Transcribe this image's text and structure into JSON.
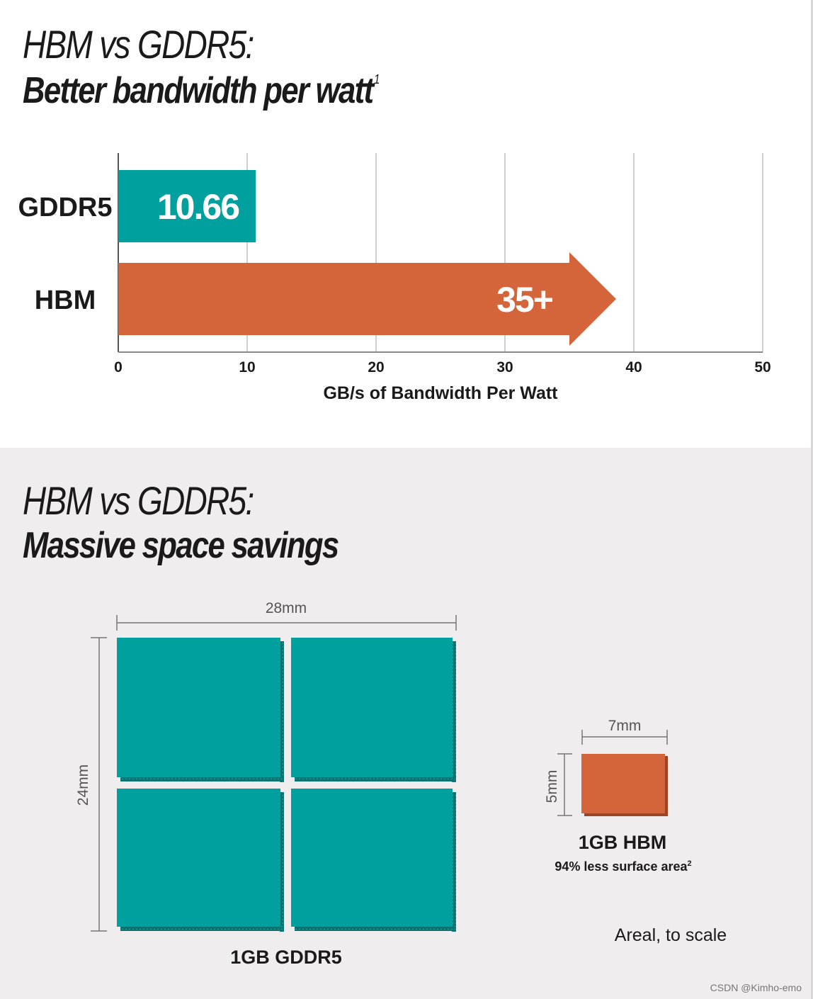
{
  "section1": {
    "heading_light": "HBM vs GDDR5:",
    "heading_bold": "Better bandwidth per watt",
    "heading_footnote": "1"
  },
  "section2": {
    "heading_light": "HBM vs GDDR5:",
    "heading_bold": "Massive space savings",
    "gddr5_width_label": "28mm",
    "gddr5_height_label": "24mm",
    "gddr5_caption": "1GB GDDR5",
    "hbm_width_label": "7mm",
    "hbm_height_label": "5mm",
    "hbm_caption": "1GB HBM",
    "hbm_subcaption": "94% less surface area",
    "hbm_subcaption_footnote": "2",
    "scale_note": "Areal, to scale"
  },
  "chart_data": {
    "type": "bar",
    "orientation": "horizontal",
    "categories": [
      "GDDR5",
      "HBM"
    ],
    "values": [
      10.66,
      35
    ],
    "value_labels": [
      "10.66",
      "35+"
    ],
    "xlabel": "GB/s of Bandwidth Per Watt",
    "ylabel": "",
    "xlim": [
      0,
      50
    ],
    "xticks": [
      0,
      10,
      20,
      30,
      40,
      50
    ],
    "grid": true,
    "colors": {
      "GDDR5": "#00a09f",
      "HBM": "#d4643a"
    },
    "hbm_arrow": true
  },
  "colors": {
    "gddr5": "#00a09f",
    "gddr5_shadow": "#0a7473",
    "hbm": "#d4643a",
    "hbm_shadow": "#9c4424",
    "grid": "#b5b5b5",
    "dimension": "#777777"
  },
  "credit": "CSDN @Kimho-emo"
}
